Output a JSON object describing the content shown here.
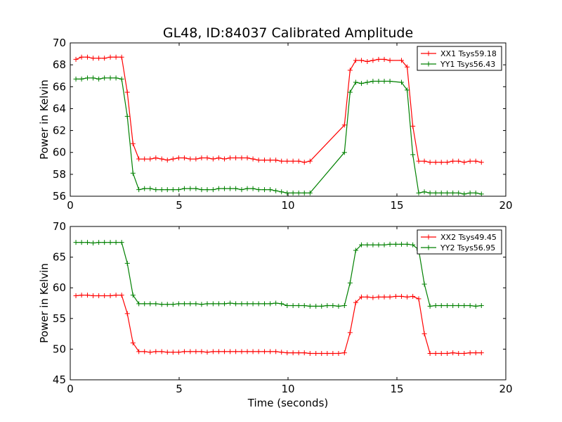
{
  "figure": {
    "title": "GL48, ID:84037 Calibrated Amplitude",
    "xlabel": "Time (seconds)"
  },
  "chart_data": [
    {
      "type": "line",
      "title": "GL48, ID:84037 Calibrated Amplitude",
      "xlabel": "",
      "ylabel": "Power in Kelvin",
      "xlim": [
        0,
        20
      ],
      "ylim": [
        56,
        70
      ],
      "xticks": [
        0,
        5,
        10,
        15,
        20
      ],
      "yticks": [
        56,
        58,
        60,
        62,
        64,
        66,
        68,
        70
      ],
      "grid": false,
      "legend_position": "top-right",
      "x": [
        0.26,
        0.52,
        0.79,
        1.05,
        1.31,
        1.57,
        1.84,
        2.1,
        2.36,
        2.62,
        2.88,
        3.15,
        3.41,
        3.67,
        3.93,
        4.2,
        4.46,
        4.72,
        4.98,
        5.24,
        5.51,
        5.77,
        6.03,
        6.29,
        6.56,
        6.82,
        7.08,
        7.34,
        7.6,
        7.87,
        8.13,
        8.39,
        8.65,
        8.92,
        9.18,
        9.44,
        9.7,
        9.96,
        10.23,
        10.49,
        10.75,
        11.01,
        11.28,
        11.54,
        11.8,
        12.06,
        12.32,
        12.59,
        12.85,
        13.11,
        13.37,
        13.64,
        13.9,
        14.16,
        14.42,
        14.68,
        14.95,
        15.21,
        15.47,
        15.73,
        16.0,
        16.26,
        16.52,
        16.78,
        17.04,
        17.31,
        17.57,
        17.83,
        18.09,
        18.36,
        18.62,
        18.88
      ],
      "series": [
        {
          "name": "XX1 Tsys59.18",
          "color": "#ff0000",
          "values": [
            68.5,
            68.7,
            68.7,
            68.6,
            68.6,
            68.6,
            68.7,
            68.7,
            68.7,
            65.5,
            60.8,
            59.4,
            59.4,
            59.4,
            59.5,
            59.4,
            59.3,
            59.4,
            59.5,
            59.5,
            59.4,
            59.4,
            59.5,
            59.5,
            59.4,
            59.5,
            59.4,
            59.5,
            59.5,
            59.5,
            59.5,
            59.4,
            59.3,
            59.3,
            59.3,
            59.3,
            59.2,
            59.2,
            59.2,
            59.2,
            59.1,
            59.2,
            62.5,
            67.5,
            68.4,
            68.4,
            68.3,
            68.4,
            68.5,
            68.5,
            68.4,
            68.4,
            67.8,
            62.4,
            59.2,
            59.2,
            59.1,
            59.1,
            59.1,
            59.1,
            59.2,
            59.2,
            59.1,
            59.2,
            59.2,
            59.1
          ],
          "x_values": [
            0.26,
            0.52,
            0.79,
            1.05,
            1.31,
            1.57,
            1.84,
            2.1,
            2.36,
            2.62,
            2.88,
            3.15,
            3.41,
            3.67,
            3.93,
            4.2,
            4.46,
            4.72,
            4.98,
            5.24,
            5.51,
            5.77,
            6.03,
            6.29,
            6.56,
            6.82,
            7.08,
            7.34,
            7.6,
            7.87,
            8.13,
            8.39,
            8.65,
            8.92,
            9.18,
            9.44,
            9.7,
            9.96,
            10.23,
            10.49,
            10.75,
            11.01,
            12.59,
            12.85,
            13.11,
            13.37,
            13.64,
            13.9,
            14.16,
            14.42,
            14.68,
            15.21,
            15.47,
            15.73,
            16.0,
            16.26,
            16.52,
            16.78,
            17.04,
            17.31,
            17.57,
            17.83,
            18.09,
            18.36,
            18.62,
            18.88
          ]
        },
        {
          "name": "YY1 Tsys56.43",
          "color": "#008000",
          "values": [
            66.7,
            66.7,
            66.8,
            66.8,
            66.7,
            66.8,
            66.8,
            66.8,
            66.7,
            63.3,
            58.1,
            56.6,
            56.7,
            56.7,
            56.6,
            56.6,
            56.6,
            56.6,
            56.6,
            56.7,
            56.7,
            56.7,
            56.6,
            56.6,
            56.6,
            56.7,
            56.7,
            56.7,
            56.7,
            56.6,
            56.7,
            56.7,
            56.6,
            56.6,
            56.6,
            56.5,
            56.4,
            56.3,
            56.3,
            56.3,
            56.3,
            56.3,
            60.0,
            65.5,
            66.4,
            66.3,
            66.4,
            66.5,
            66.5,
            66.5,
            66.5,
            66.4,
            65.7,
            59.8,
            56.3,
            56.4,
            56.3,
            56.3,
            56.3,
            56.3,
            56.3,
            56.3,
            56.2,
            56.3,
            56.3,
            56.2
          ],
          "x_values": [
            0.26,
            0.52,
            0.79,
            1.05,
            1.31,
            1.57,
            1.84,
            2.1,
            2.36,
            2.62,
            2.88,
            3.15,
            3.41,
            3.67,
            3.93,
            4.2,
            4.46,
            4.72,
            4.98,
            5.24,
            5.51,
            5.77,
            6.03,
            6.29,
            6.56,
            6.82,
            7.08,
            7.34,
            7.6,
            7.87,
            8.13,
            8.39,
            8.65,
            8.92,
            9.18,
            9.44,
            9.7,
            9.96,
            10.23,
            10.49,
            10.75,
            11.01,
            12.59,
            12.85,
            13.11,
            13.37,
            13.64,
            13.9,
            14.16,
            14.42,
            14.68,
            15.21,
            15.47,
            15.73,
            16.0,
            16.26,
            16.52,
            16.78,
            17.04,
            17.31,
            17.57,
            17.83,
            18.09,
            18.36,
            18.62,
            18.88
          ]
        }
      ]
    },
    {
      "type": "line",
      "title": "",
      "xlabel": "Time (seconds)",
      "ylabel": "Power in Kelvin",
      "xlim": [
        0,
        20
      ],
      "ylim": [
        45,
        70
      ],
      "xticks": [
        0,
        5,
        10,
        15,
        20
      ],
      "yticks": [
        45,
        50,
        55,
        60,
        65,
        70
      ],
      "grid": false,
      "legend_position": "top-right",
      "series": [
        {
          "name": "XX2 Tsys49.45",
          "color": "#ff0000",
          "x_values": [
            0.26,
            0.52,
            0.79,
            1.05,
            1.31,
            1.57,
            1.84,
            2.1,
            2.36,
            2.62,
            2.88,
            3.15,
            3.41,
            3.67,
            3.93,
            4.2,
            4.46,
            4.72,
            4.98,
            5.24,
            5.51,
            5.77,
            6.03,
            6.29,
            6.56,
            6.82,
            7.08,
            7.34,
            7.6,
            7.87,
            8.13,
            8.39,
            8.65,
            8.92,
            9.18,
            9.44,
            9.7,
            9.96,
            10.23,
            10.49,
            10.75,
            11.01,
            11.28,
            11.54,
            11.8,
            12.06,
            12.32,
            12.59,
            12.85,
            13.11,
            13.37,
            13.64,
            13.9,
            14.16,
            14.42,
            14.68,
            14.95,
            15.21,
            15.47,
            15.73,
            16.0,
            16.26,
            16.52,
            16.78,
            17.04,
            17.31,
            17.57,
            17.83,
            18.09,
            18.36,
            18.62,
            18.88
          ],
          "values": [
            58.7,
            58.8,
            58.8,
            58.7,
            58.7,
            58.7,
            58.7,
            58.8,
            58.8,
            55.8,
            51.0,
            49.6,
            49.6,
            49.5,
            49.6,
            49.6,
            49.5,
            49.5,
            49.5,
            49.6,
            49.6,
            49.6,
            49.6,
            49.5,
            49.6,
            49.6,
            49.6,
            49.6,
            49.6,
            49.6,
            49.6,
            49.6,
            49.6,
            49.6,
            49.6,
            49.6,
            49.5,
            49.4,
            49.4,
            49.4,
            49.4,
            49.3,
            49.3,
            49.3,
            49.3,
            49.3,
            49.3,
            49.4,
            52.7,
            57.6,
            58.5,
            58.5,
            58.4,
            58.5,
            58.5,
            58.5,
            58.6,
            58.6,
            58.5,
            58.6,
            58.2,
            52.5,
            49.3,
            49.3,
            49.3,
            49.3,
            49.4,
            49.3,
            49.3,
            49.4,
            49.4,
            49.4
          ]
        },
        {
          "name": "YY2 Tsys56.95",
          "color": "#008000",
          "x_values": [
            0.26,
            0.52,
            0.79,
            1.05,
            1.31,
            1.57,
            1.84,
            2.1,
            2.36,
            2.62,
            2.88,
            3.15,
            3.41,
            3.67,
            3.93,
            4.2,
            4.46,
            4.72,
            4.98,
            5.24,
            5.51,
            5.77,
            6.03,
            6.29,
            6.56,
            6.82,
            7.08,
            7.34,
            7.6,
            7.87,
            8.13,
            8.39,
            8.65,
            8.92,
            9.18,
            9.44,
            9.7,
            9.96,
            10.23,
            10.49,
            10.75,
            11.01,
            11.28,
            11.54,
            11.8,
            12.06,
            12.32,
            12.59,
            12.85,
            13.11,
            13.37,
            13.64,
            13.9,
            14.16,
            14.42,
            14.68,
            14.95,
            15.21,
            15.47,
            15.73,
            16.0,
            16.26,
            16.52,
            16.78,
            17.04,
            17.31,
            17.57,
            17.83,
            18.09,
            18.36,
            18.62,
            18.88
          ],
          "values": [
            67.4,
            67.4,
            67.4,
            67.3,
            67.4,
            67.4,
            67.4,
            67.4,
            67.4,
            64.0,
            58.8,
            57.4,
            57.4,
            57.4,
            57.4,
            57.3,
            57.3,
            57.3,
            57.4,
            57.4,
            57.4,
            57.4,
            57.3,
            57.4,
            57.4,
            57.4,
            57.4,
            57.5,
            57.4,
            57.4,
            57.4,
            57.4,
            57.4,
            57.4,
            57.4,
            57.5,
            57.4,
            57.1,
            57.1,
            57.1,
            57.1,
            57.0,
            57.0,
            57.0,
            57.1,
            57.1,
            57.0,
            57.1,
            60.8,
            66.1,
            67.0,
            67.0,
            67.0,
            67.0,
            67.0,
            67.1,
            67.1,
            67.1,
            67.1,
            67.0,
            66.2,
            60.6,
            57.0,
            57.1,
            57.1,
            57.1,
            57.1,
            57.1,
            57.1,
            57.1,
            57.0,
            57.1
          ]
        }
      ]
    }
  ]
}
